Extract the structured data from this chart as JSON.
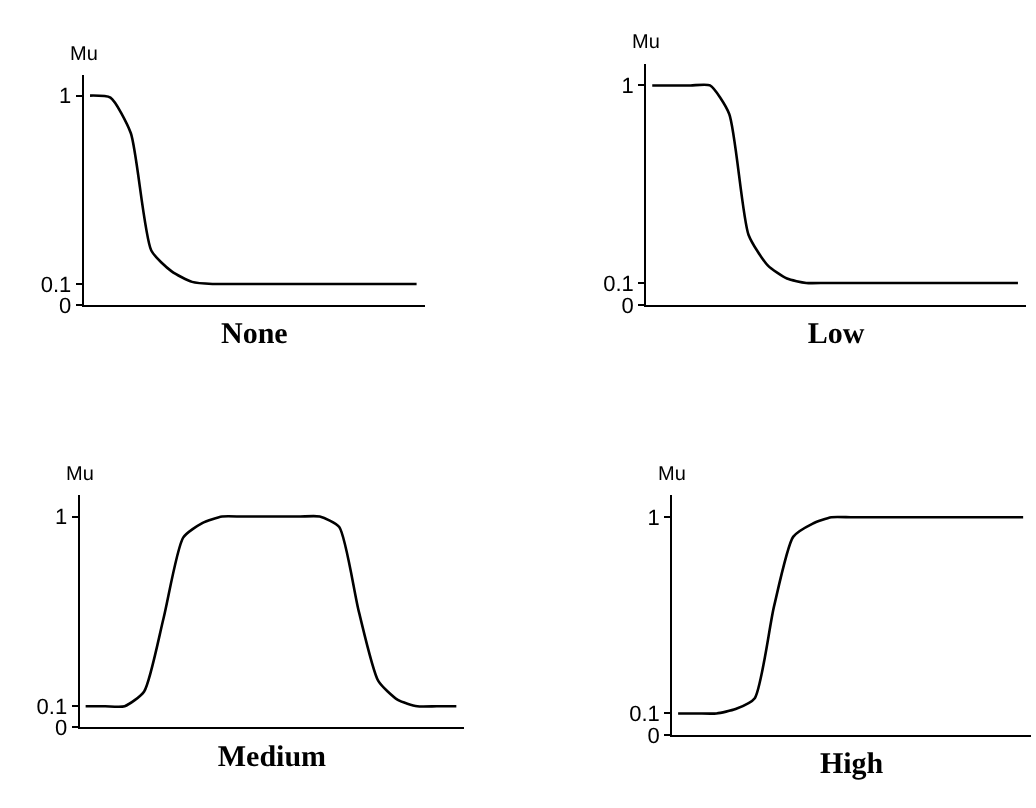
{
  "chart_data": [
    {
      "type": "line",
      "xlabel": "None",
      "ylabel": "Mu",
      "color": "#000000",
      "tick_labels": "y",
      "ylim": [
        0,
        1.1
      ],
      "yticks": [
        0,
        0.1,
        1
      ],
      "categories": [
        null,
        null,
        null,
        null,
        null,
        null,
        null,
        null,
        null,
        null,
        null,
        null,
        null,
        null,
        null,
        null,
        null
      ],
      "values": [
        1,
        0.99,
        0.82,
        0.26,
        0.16,
        0.11,
        0.1,
        0.1,
        0.1,
        0.1,
        0.1,
        0.1,
        0.1,
        0.1,
        0.1,
        0.1,
        0.1
      ]
    },
    {
      "type": "line",
      "xlabel": "Low",
      "ylabel": "Mu",
      "color": "#000000",
      "tick_labels": "y",
      "ylim": [
        0,
        1.1
      ],
      "yticks": [
        0,
        0.1,
        1
      ],
      "categories": [
        null,
        null,
        null,
        null,
        null,
        null,
        null,
        null,
        null,
        null,
        null,
        null,
        null,
        null,
        null,
        null,
        null,
        null,
        null,
        null
      ],
      "values": [
        1,
        1,
        1,
        1,
        0.87,
        0.32,
        0.18,
        0.12,
        0.1,
        0.1,
        0.1,
        0.1,
        0.1,
        0.1,
        0.1,
        0.1,
        0.1,
        0.1,
        0.1,
        0.1
      ]
    },
    {
      "type": "line",
      "xlabel": "Medium",
      "ylabel": "Mu",
      "color": "#000000",
      "tick_labels": "y",
      "ylim": [
        0,
        1.1
      ],
      "yticks": [
        0,
        0.1,
        1
      ],
      "categories": [
        null,
        null,
        null,
        null,
        null,
        null,
        null,
        null,
        null,
        null,
        null,
        null,
        null,
        null,
        null,
        null,
        null,
        null,
        null,
        null
      ],
      "values": [
        0.1,
        0.1,
        0.1,
        0.17,
        0.52,
        0.9,
        0.97,
        1,
        1,
        1,
        1,
        1,
        1,
        0.95,
        0.55,
        0.22,
        0.13,
        0.1,
        0.1,
        0.1
      ]
    },
    {
      "type": "line",
      "xlabel": "High",
      "ylabel": "Mu",
      "color": "#000000",
      "tick_labels": "y",
      "ylim": [
        0,
        1.1
      ],
      "yticks": [
        0,
        0.1,
        1
      ],
      "categories": [
        null,
        null,
        null,
        null,
        null,
        null,
        null,
        null,
        null,
        null,
        null,
        null,
        null,
        null,
        null,
        null,
        null,
        null,
        null
      ],
      "values": [
        0.1,
        0.1,
        0.1,
        0.12,
        0.17,
        0.59,
        0.91,
        0.97,
        1,
        1,
        1,
        1,
        1,
        1,
        1,
        1,
        1,
        1,
        1
      ]
    }
  ]
}
